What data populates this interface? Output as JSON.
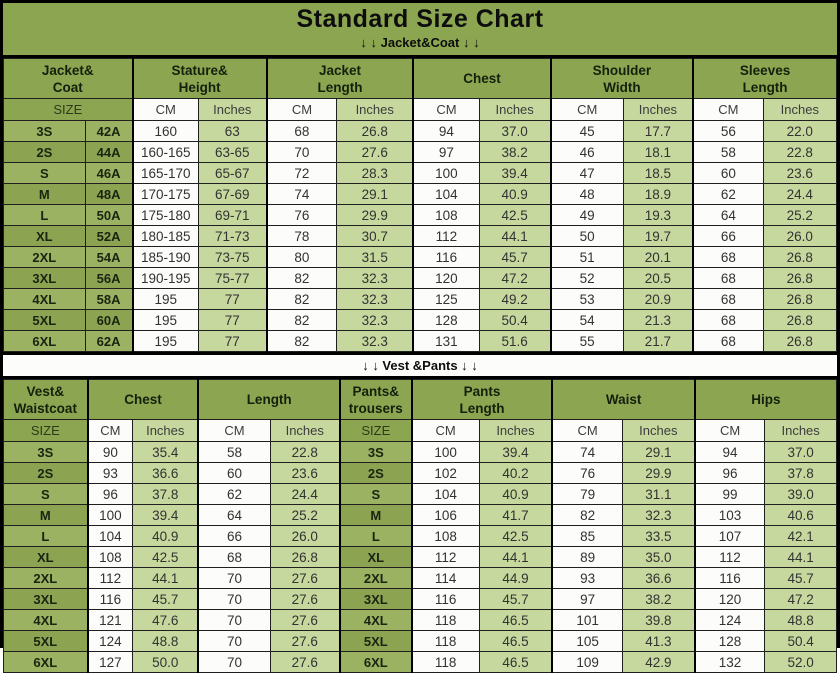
{
  "title": "Standard Size Chart",
  "colors": {
    "header_green": "#8CA551",
    "size_green_light": "#9AB261",
    "inches_light_green": "#C6D89E",
    "cm_white": "#FCFCFA",
    "border_black": "#000000",
    "text_black": "#0D0D0D"
  },
  "chart_data": [
    {
      "type": "table",
      "section": "Jacket&Coat",
      "banner": "↓ ↓  Jacket&Coat ↓ ↓",
      "group_headers": [
        {
          "lines": [
            "Jacket&",
            "Coat"
          ],
          "span": 2
        },
        {
          "lines": [
            "Stature&",
            "Height"
          ],
          "span": 2
        },
        {
          "lines": [
            "Jacket",
            "Length"
          ],
          "span": 2
        },
        {
          "lines": [
            "Chest"
          ],
          "span": 2
        },
        {
          "lines": [
            "Shoulder",
            "Width"
          ],
          "span": 2
        },
        {
          "lines": [
            "Sleeves",
            "Length"
          ],
          "span": 2
        }
      ],
      "sub_headers": [
        {
          "label": "SIZE",
          "span": 2,
          "kind": "size"
        },
        {
          "label": "CM",
          "span": 1,
          "kind": "cm"
        },
        {
          "label": "Inches",
          "span": 1,
          "kind": "in"
        },
        {
          "label": "CM",
          "span": 1,
          "kind": "cm"
        },
        {
          "label": "Inches",
          "span": 1,
          "kind": "in"
        },
        {
          "label": "CM",
          "span": 1,
          "kind": "cm"
        },
        {
          "label": "Inches",
          "span": 1,
          "kind": "in"
        },
        {
          "label": "CM",
          "span": 1,
          "kind": "cm"
        },
        {
          "label": "Inches",
          "span": 1,
          "kind": "in"
        },
        {
          "label": "CM",
          "span": 1,
          "kind": "cm"
        },
        {
          "label": "Inches",
          "span": 1,
          "kind": "in"
        }
      ],
      "col_kinds": [
        "size",
        "size",
        "cm",
        "in",
        "cm",
        "in",
        "cm",
        "in",
        "cm",
        "in",
        "cm",
        "in"
      ],
      "rows": [
        [
          "3S",
          "42A",
          "160",
          "63",
          "68",
          "26.8",
          "94",
          "37.0",
          "45",
          "17.7",
          "56",
          "22.0"
        ],
        [
          "2S",
          "44A",
          "160-165",
          "63-65",
          "70",
          "27.6",
          "97",
          "38.2",
          "46",
          "18.1",
          "58",
          "22.8"
        ],
        [
          "S",
          "46A",
          "165-170",
          "65-67",
          "72",
          "28.3",
          "100",
          "39.4",
          "47",
          "18.5",
          "60",
          "23.6"
        ],
        [
          "M",
          "48A",
          "170-175",
          "67-69",
          "74",
          "29.1",
          "104",
          "40.9",
          "48",
          "18.9",
          "62",
          "24.4"
        ],
        [
          "L",
          "50A",
          "175-180",
          "69-71",
          "76",
          "29.9",
          "108",
          "42.5",
          "49",
          "19.3",
          "64",
          "25.2"
        ],
        [
          "XL",
          "52A",
          "180-185",
          "71-73",
          "78",
          "30.7",
          "112",
          "44.1",
          "50",
          "19.7",
          "66",
          "26.0"
        ],
        [
          "2XL",
          "54A",
          "185-190",
          "73-75",
          "80",
          "31.5",
          "116",
          "45.7",
          "51",
          "20.1",
          "68",
          "26.8"
        ],
        [
          "3XL",
          "56A",
          "190-195",
          "75-77",
          "82",
          "32.3",
          "120",
          "47.2",
          "52",
          "20.5",
          "68",
          "26.8"
        ],
        [
          "4XL",
          "58A",
          "195",
          "77",
          "82",
          "32.3",
          "125",
          "49.2",
          "53",
          "20.9",
          "68",
          "26.8"
        ],
        [
          "5XL",
          "60A",
          "195",
          "77",
          "82",
          "32.3",
          "128",
          "50.4",
          "54",
          "21.3",
          "68",
          "26.8"
        ],
        [
          "6XL",
          "62A",
          "195",
          "77",
          "82",
          "32.3",
          "131",
          "51.6",
          "55",
          "21.7",
          "68",
          "26.8"
        ]
      ]
    },
    {
      "type": "table",
      "section": "Vest &Pants",
      "banner": "↓ ↓  Vest &Pants ↓ ↓",
      "group_headers": [
        {
          "lines": [
            "Vest&",
            "Waistcoat"
          ],
          "span": 1
        },
        {
          "lines": [
            "Chest"
          ],
          "span": 2
        },
        {
          "lines": [
            "Length"
          ],
          "span": 2
        },
        {
          "lines": [
            "Pants&",
            "trousers"
          ],
          "span": 1
        },
        {
          "lines": [
            "Pants",
            "Length"
          ],
          "span": 2
        },
        {
          "lines": [
            "Waist"
          ],
          "span": 2
        },
        {
          "lines": [
            "Hips"
          ],
          "span": 2
        }
      ],
      "sub_headers": [
        {
          "label": "SIZE",
          "span": 1,
          "kind": "size"
        },
        {
          "label": "CM",
          "span": 1,
          "kind": "cm"
        },
        {
          "label": "Inches",
          "span": 1,
          "kind": "in"
        },
        {
          "label": "CM",
          "span": 1,
          "kind": "cm"
        },
        {
          "label": "Inches",
          "span": 1,
          "kind": "in"
        },
        {
          "label": "SIZE",
          "span": 1,
          "kind": "size"
        },
        {
          "label": "CM",
          "span": 1,
          "kind": "cm"
        },
        {
          "label": "Inches",
          "span": 1,
          "kind": "in"
        },
        {
          "label": "CM",
          "span": 1,
          "kind": "cm"
        },
        {
          "label": "Inches",
          "span": 1,
          "kind": "in"
        },
        {
          "label": "CM",
          "span": 1,
          "kind": "cm"
        },
        {
          "label": "Inches",
          "span": 1,
          "kind": "in"
        }
      ],
      "col_kinds": [
        "size",
        "cm",
        "in",
        "cm",
        "in",
        "size",
        "cm",
        "in",
        "cm",
        "in",
        "cm",
        "in"
      ],
      "rows": [
        [
          "3S",
          "90",
          "35.4",
          "58",
          "22.8",
          "3S",
          "100",
          "39.4",
          "74",
          "29.1",
          "94",
          "37.0"
        ],
        [
          "2S",
          "93",
          "36.6",
          "60",
          "23.6",
          "2S",
          "102",
          "40.2",
          "76",
          "29.9",
          "96",
          "37.8"
        ],
        [
          "S",
          "96",
          "37.8",
          "62",
          "24.4",
          "S",
          "104",
          "40.9",
          "79",
          "31.1",
          "99",
          "39.0"
        ],
        [
          "M",
          "100",
          "39.4",
          "64",
          "25.2",
          "M",
          "106",
          "41.7",
          "82",
          "32.3",
          "103",
          "40.6"
        ],
        [
          "L",
          "104",
          "40.9",
          "66",
          "26.0",
          "L",
          "108",
          "42.5",
          "85",
          "33.5",
          "107",
          "42.1"
        ],
        [
          "XL",
          "108",
          "42.5",
          "68",
          "26.8",
          "XL",
          "112",
          "44.1",
          "89",
          "35.0",
          "112",
          "44.1"
        ],
        [
          "2XL",
          "112",
          "44.1",
          "70",
          "27.6",
          "2XL",
          "114",
          "44.9",
          "93",
          "36.6",
          "116",
          "45.7"
        ],
        [
          "3XL",
          "116",
          "45.7",
          "70",
          "27.6",
          "3XL",
          "116",
          "45.7",
          "97",
          "38.2",
          "120",
          "47.2"
        ],
        [
          "4XL",
          "121",
          "47.6",
          "70",
          "27.6",
          "4XL",
          "118",
          "46.5",
          "101",
          "39.8",
          "124",
          "48.8"
        ],
        [
          "5XL",
          "124",
          "48.8",
          "70",
          "27.6",
          "5XL",
          "118",
          "46.5",
          "105",
          "41.3",
          "128",
          "50.4"
        ],
        [
          "6XL",
          "127",
          "50.0",
          "70",
          "27.6",
          "6XL",
          "118",
          "46.5",
          "109",
          "42.9",
          "132",
          "52.0"
        ]
      ]
    }
  ]
}
